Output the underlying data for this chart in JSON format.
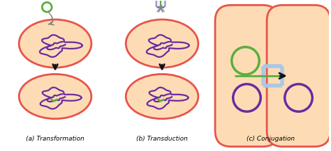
{
  "labels": [
    "(a) Transformation",
    "(b) Transduction",
    "(c) Conjugation"
  ],
  "cell_fill": "#FDDCB5",
  "cell_edge": "#E8534A",
  "dna_color": "#6B2AA0",
  "green_color": "#5AAF3C",
  "arrow_color": "#111111",
  "pilus_color": "#E8A020",
  "blue_color": "#A8C8E8",
  "label_fontsize": 6.5,
  "bg_color": "#FFFFFF"
}
